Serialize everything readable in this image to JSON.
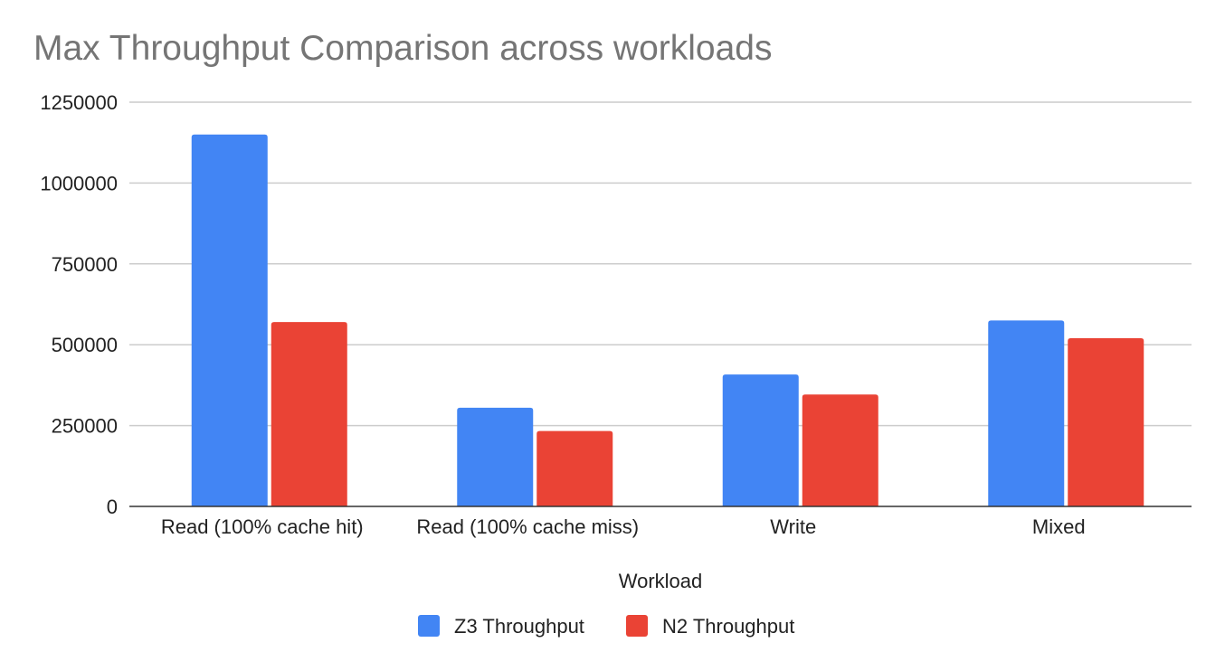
{
  "chart_data": {
    "type": "bar",
    "title": "Max Throughput Comparison across workloads",
    "xlabel": "Workload",
    "ylabel": "",
    "categories": [
      "Read (100% cache hit)",
      "Read (100% cache miss)",
      "Write",
      "Mixed"
    ],
    "series": [
      {
        "name": "Z3 Throughput",
        "color": "#4285f4",
        "values": [
          1150000,
          305000,
          408000,
          575000
        ]
      },
      {
        "name": "N2 Throughput",
        "color": "#ea4335",
        "values": [
          570000,
          233000,
          346000,
          520000
        ]
      }
    ],
    "ylim": [
      0,
      1250000
    ],
    "yticks": [
      "0",
      "250000",
      "500000",
      "750000",
      "1000000",
      "1250000"
    ],
    "grid": true,
    "legend_position": "bottom"
  }
}
